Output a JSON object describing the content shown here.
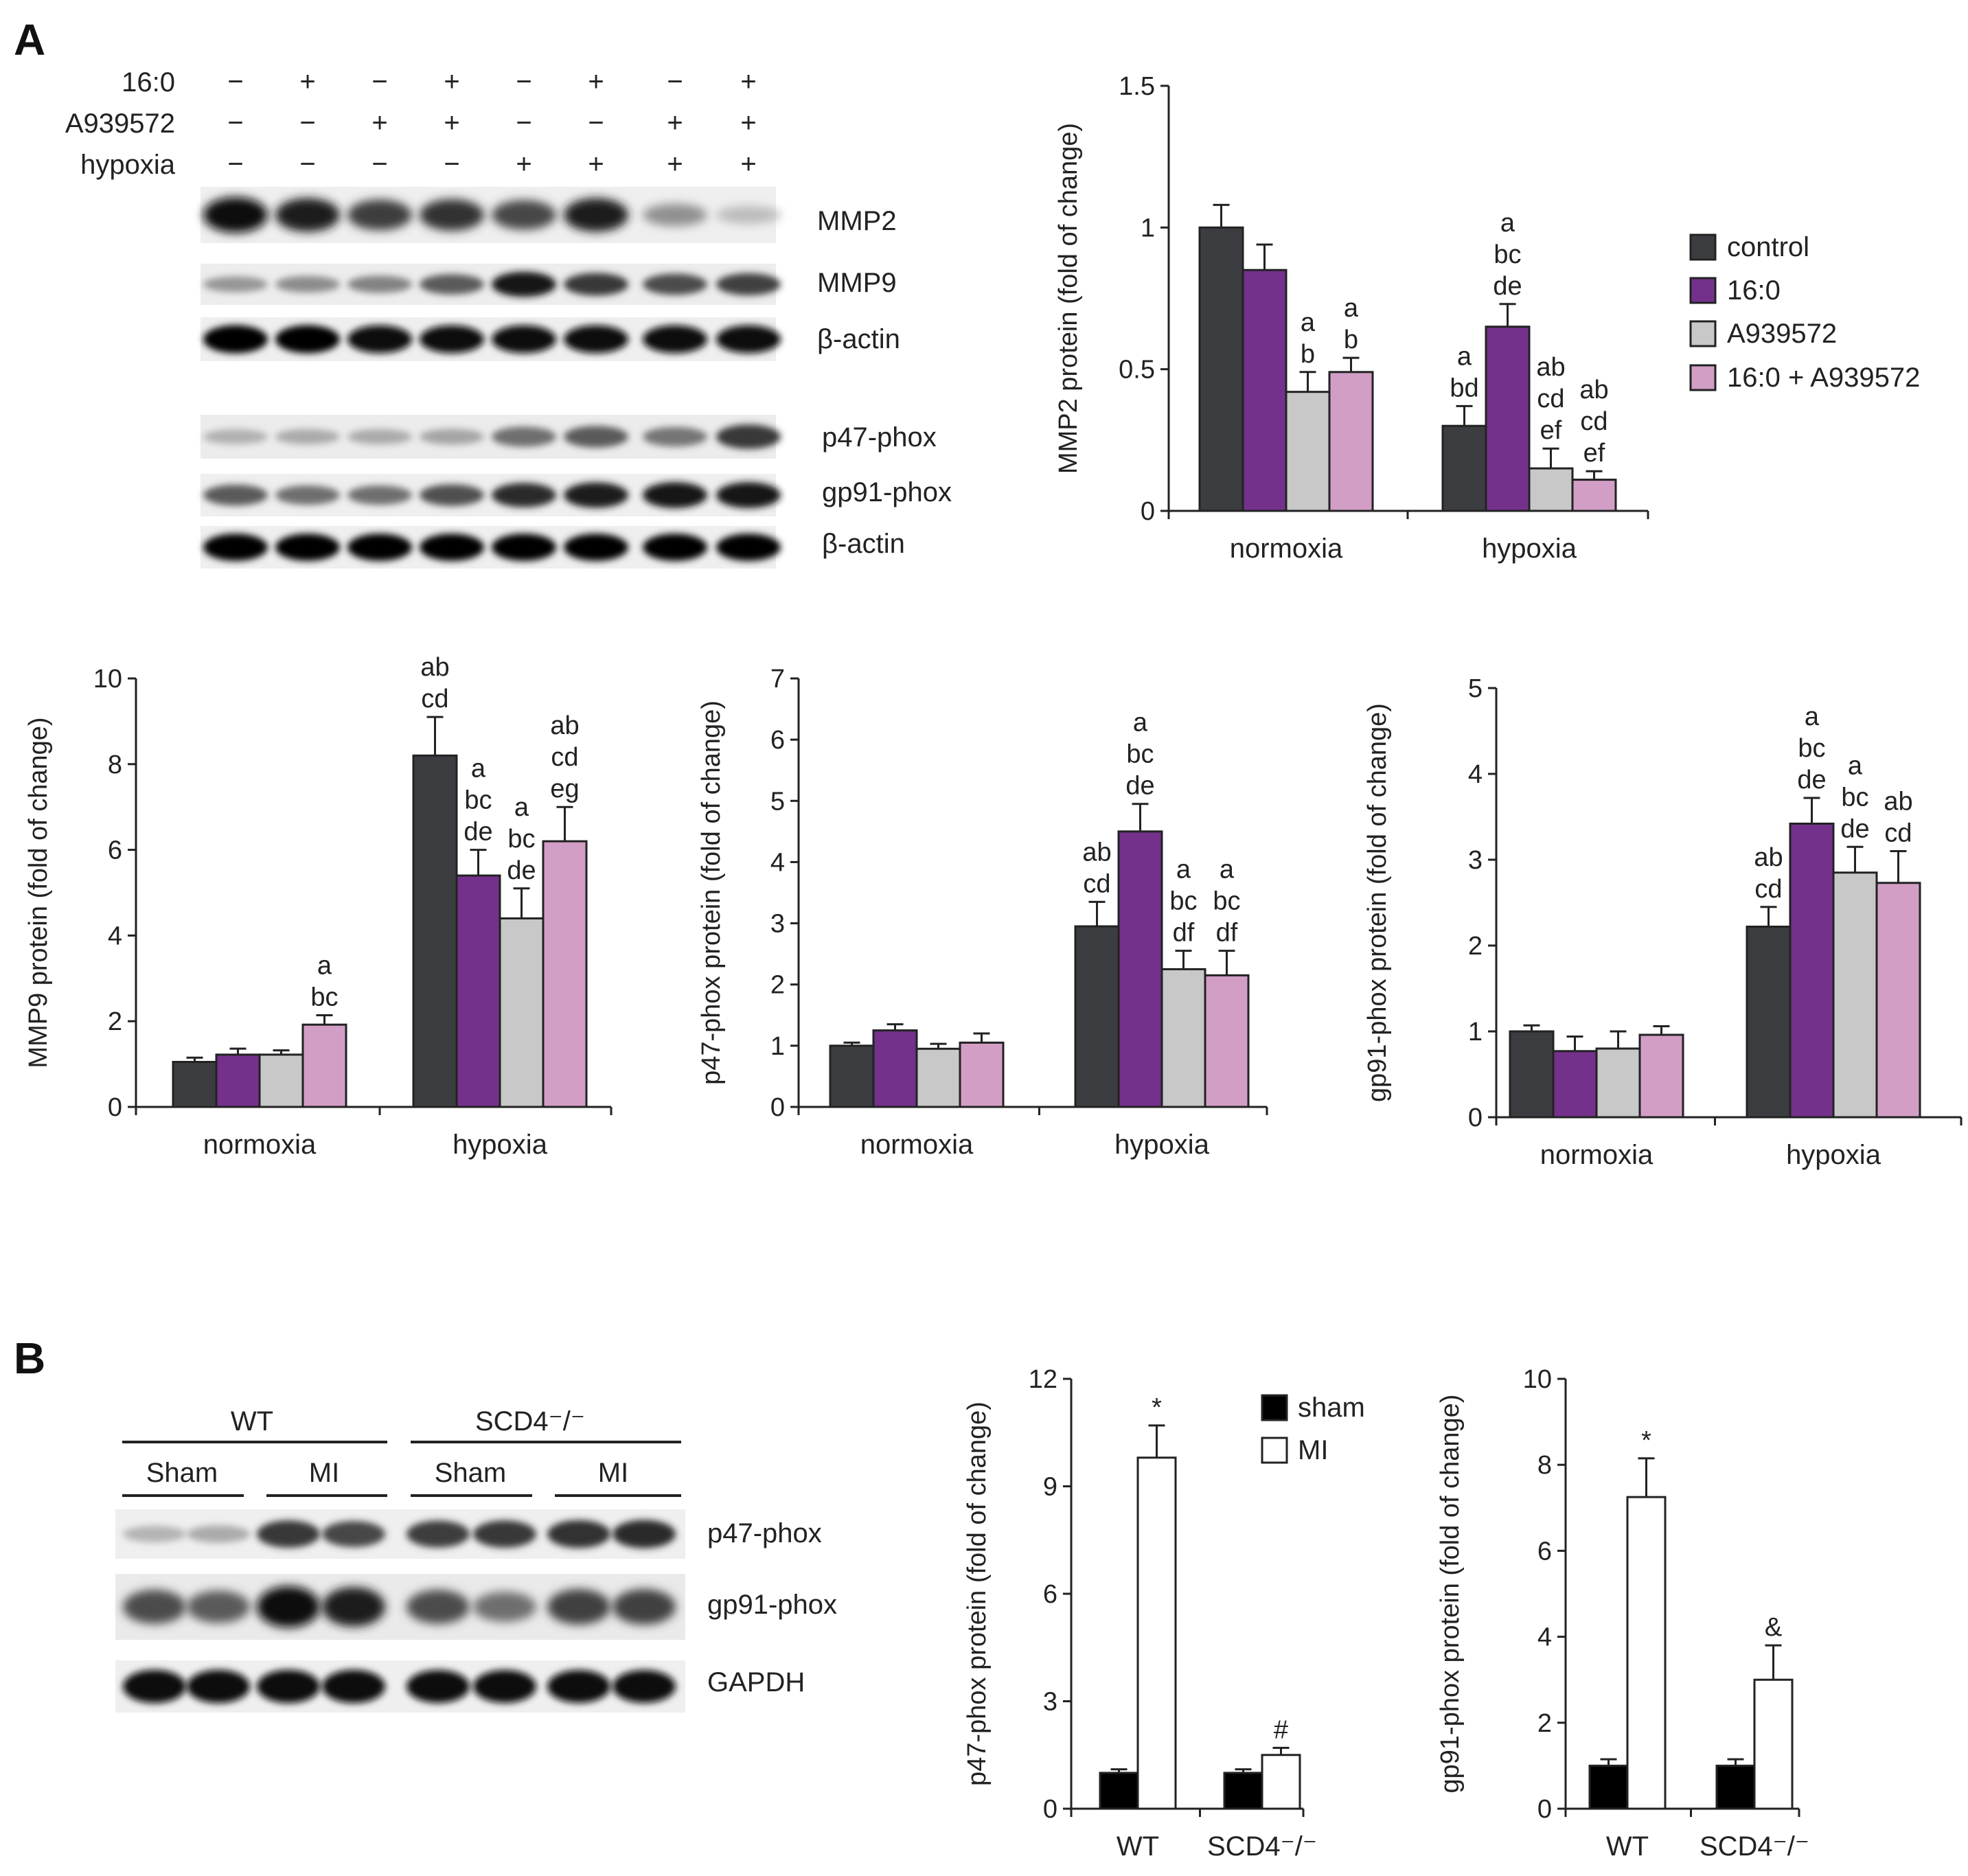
{
  "panels": {
    "a": "A",
    "b": "B"
  },
  "blot_a": {
    "row_labels": [
      "16:0",
      "A939572",
      "hypoxia"
    ],
    "signs": [
      [
        "−",
        "+",
        "−",
        "+",
        "−",
        "+",
        "−",
        "+"
      ],
      [
        "−",
        "−",
        "+",
        "+",
        "−",
        "−",
        "+",
        "+"
      ],
      [
        "−",
        "−",
        "−",
        "−",
        "+",
        "+",
        "+",
        "+"
      ]
    ],
    "bands": [
      "MMP2",
      "MMP9",
      "β-actin",
      "p47-phox",
      "gp91-phox",
      "β-actin"
    ]
  },
  "blot_b": {
    "groups": [
      "WT",
      "SCD4⁻/⁻"
    ],
    "subgroups": [
      "Sham",
      "MI",
      "Sham",
      "MI"
    ],
    "bands": [
      "p47-phox",
      "gp91-phox",
      "GAPDH"
    ]
  },
  "colors": {
    "control": "#3b3d40",
    "fa": "#74318c",
    "inh": "#c8c8c8",
    "combo": "#d29ec6",
    "sham": "#000000",
    "mi": "#ffffff"
  },
  "chart_data": [
    {
      "id": "mmp2",
      "type": "bar",
      "ylabel": "MMP2 protein (fold of change)",
      "ylim": [
        0,
        1.5
      ],
      "yticks": [
        0,
        0.5,
        1,
        1.5
      ],
      "ytick_labels": [
        "0",
        "0.5",
        "1",
        "1.5"
      ],
      "categories": [
        "normoxia",
        "hypoxia"
      ],
      "legend": [
        "control",
        "16:0",
        "A939572",
        "16:0 + A939572"
      ],
      "series": [
        {
          "name": "control",
          "values": [
            1.0,
            0.3
          ],
          "errors": [
            0.08,
            0.07
          ]
        },
        {
          "name": "16:0",
          "values": [
            0.85,
            0.65
          ],
          "errors": [
            0.09,
            0.08
          ]
        },
        {
          "name": "A939572",
          "values": [
            0.42,
            0.15
          ],
          "errors": [
            0.07,
            0.07
          ]
        },
        {
          "name": "16:0 + A939572",
          "values": [
            0.49,
            0.11
          ],
          "errors": [
            0.05,
            0.03
          ]
        }
      ],
      "annotations": [
        [
          "",
          "",
          "a\nb",
          "a\nb"
        ],
        [
          "a\nbd",
          "a\nbc\nde",
          "ab\ncd\nef",
          "ab\ncd\nef"
        ]
      ]
    },
    {
      "id": "mmp9",
      "type": "bar",
      "ylabel": "MMP9 protein (fold of change)",
      "ylim": [
        0,
        10
      ],
      "yticks": [
        0,
        2,
        4,
        6,
        8,
        10
      ],
      "ytick_labels": [
        "0",
        "2",
        "4",
        "6",
        "8",
        "10"
      ],
      "categories": [
        "normoxia",
        "hypoxia"
      ],
      "series": [
        {
          "name": "control",
          "values": [
            1.05,
            8.2
          ],
          "errors": [
            0.1,
            0.9
          ]
        },
        {
          "name": "16:0",
          "values": [
            1.22,
            5.4
          ],
          "errors": [
            0.14,
            0.6
          ]
        },
        {
          "name": "A939572",
          "values": [
            1.22,
            4.4
          ],
          "errors": [
            0.1,
            0.7
          ]
        },
        {
          "name": "16:0 + A939572",
          "values": [
            1.92,
            6.2
          ],
          "errors": [
            0.22,
            0.8
          ]
        }
      ],
      "annotations": [
        [
          "",
          "",
          "",
          "a\nbc"
        ],
        [
          "ab\ncd",
          "a\nbc\nde",
          "a\nbc\nde",
          "ab\ncd\neg"
        ]
      ]
    },
    {
      "id": "p47a",
      "type": "bar",
      "ylabel": "p47-phox protein (fold of change)",
      "ylim": [
        0,
        7
      ],
      "yticks": [
        0,
        1,
        2,
        3,
        4,
        5,
        6,
        7
      ],
      "ytick_labels": [
        "0",
        "1",
        "2",
        "3",
        "4",
        "5",
        "6",
        "7"
      ],
      "categories": [
        "normoxia",
        "hypoxia"
      ],
      "series": [
        {
          "name": "control",
          "values": [
            1.0,
            2.95
          ],
          "errors": [
            0.05,
            0.4
          ]
        },
        {
          "name": "16:0",
          "values": [
            1.25,
            4.5
          ],
          "errors": [
            0.1,
            0.45
          ]
        },
        {
          "name": "A939572",
          "values": [
            0.95,
            2.25
          ],
          "errors": [
            0.08,
            0.3
          ]
        },
        {
          "name": "16:0 + A939572",
          "values": [
            1.05,
            2.15
          ],
          "errors": [
            0.15,
            0.4
          ]
        }
      ],
      "annotations": [
        [
          "",
          "",
          "",
          ""
        ],
        [
          "ab\ncd",
          "a\nbc\nde",
          "a\nbc\ndf",
          "a\nbc\ndf"
        ]
      ]
    },
    {
      "id": "gp91a",
      "type": "bar",
      "ylabel": "gp91-phox protein (fold of change)",
      "ylim": [
        0,
        5
      ],
      "yticks": [
        0,
        1,
        2,
        3,
        4,
        5
      ],
      "ytick_labels": [
        "0",
        "1",
        "2",
        "3",
        "4",
        "5"
      ],
      "categories": [
        "normoxia",
        "hypoxia"
      ],
      "series": [
        {
          "name": "control",
          "values": [
            1.0,
            2.22
          ],
          "errors": [
            0.07,
            0.23
          ]
        },
        {
          "name": "16:0",
          "values": [
            0.77,
            3.42
          ],
          "errors": [
            0.17,
            0.3
          ]
        },
        {
          "name": "A939572",
          "values": [
            0.8,
            2.85
          ],
          "errors": [
            0.2,
            0.3
          ]
        },
        {
          "name": "16:0 + A939572",
          "values": [
            0.96,
            2.73
          ],
          "errors": [
            0.1,
            0.37
          ]
        }
      ],
      "annotations": [
        [
          "",
          "",
          "",
          ""
        ],
        [
          "ab\ncd",
          "a\nbc\nde",
          "a\nbc\nde",
          "ab\ncd"
        ]
      ]
    },
    {
      "id": "p47b",
      "type": "bar",
      "ylabel": "p47-phox protein (fold of change)",
      "ylim": [
        0,
        12
      ],
      "yticks": [
        0,
        3,
        6,
        9,
        12
      ],
      "ytick_labels": [
        "0",
        "3",
        "6",
        "9",
        "12"
      ],
      "categories": [
        "WT",
        "SCD4⁻/⁻"
      ],
      "legend": [
        "sham",
        "MI"
      ],
      "series": [
        {
          "name": "sham",
          "values": [
            1.0,
            1.0
          ],
          "errors": [
            0.1,
            0.1
          ]
        },
        {
          "name": "MI",
          "values": [
            9.8,
            1.5
          ],
          "errors": [
            0.9,
            0.2
          ]
        }
      ],
      "annotations": [
        [
          "",
          "*"
        ],
        [
          "",
          "#"
        ]
      ]
    },
    {
      "id": "gp91b",
      "type": "bar",
      "ylabel": "gp91-phox protein (fold of change)",
      "ylim": [
        0,
        10
      ],
      "yticks": [
        0,
        2,
        4,
        6,
        8,
        10
      ],
      "ytick_labels": [
        "0",
        "2",
        "4",
        "6",
        "8",
        "10"
      ],
      "categories": [
        "WT",
        "SCD4⁻/⁻"
      ],
      "series": [
        {
          "name": "sham",
          "values": [
            1.0,
            1.0
          ],
          "errors": [
            0.15,
            0.15
          ]
        },
        {
          "name": "MI",
          "values": [
            7.25,
            3.0
          ],
          "errors": [
            0.9,
            0.8
          ]
        }
      ],
      "annotations": [
        [
          "",
          "*"
        ],
        [
          "",
          "&"
        ]
      ]
    }
  ]
}
